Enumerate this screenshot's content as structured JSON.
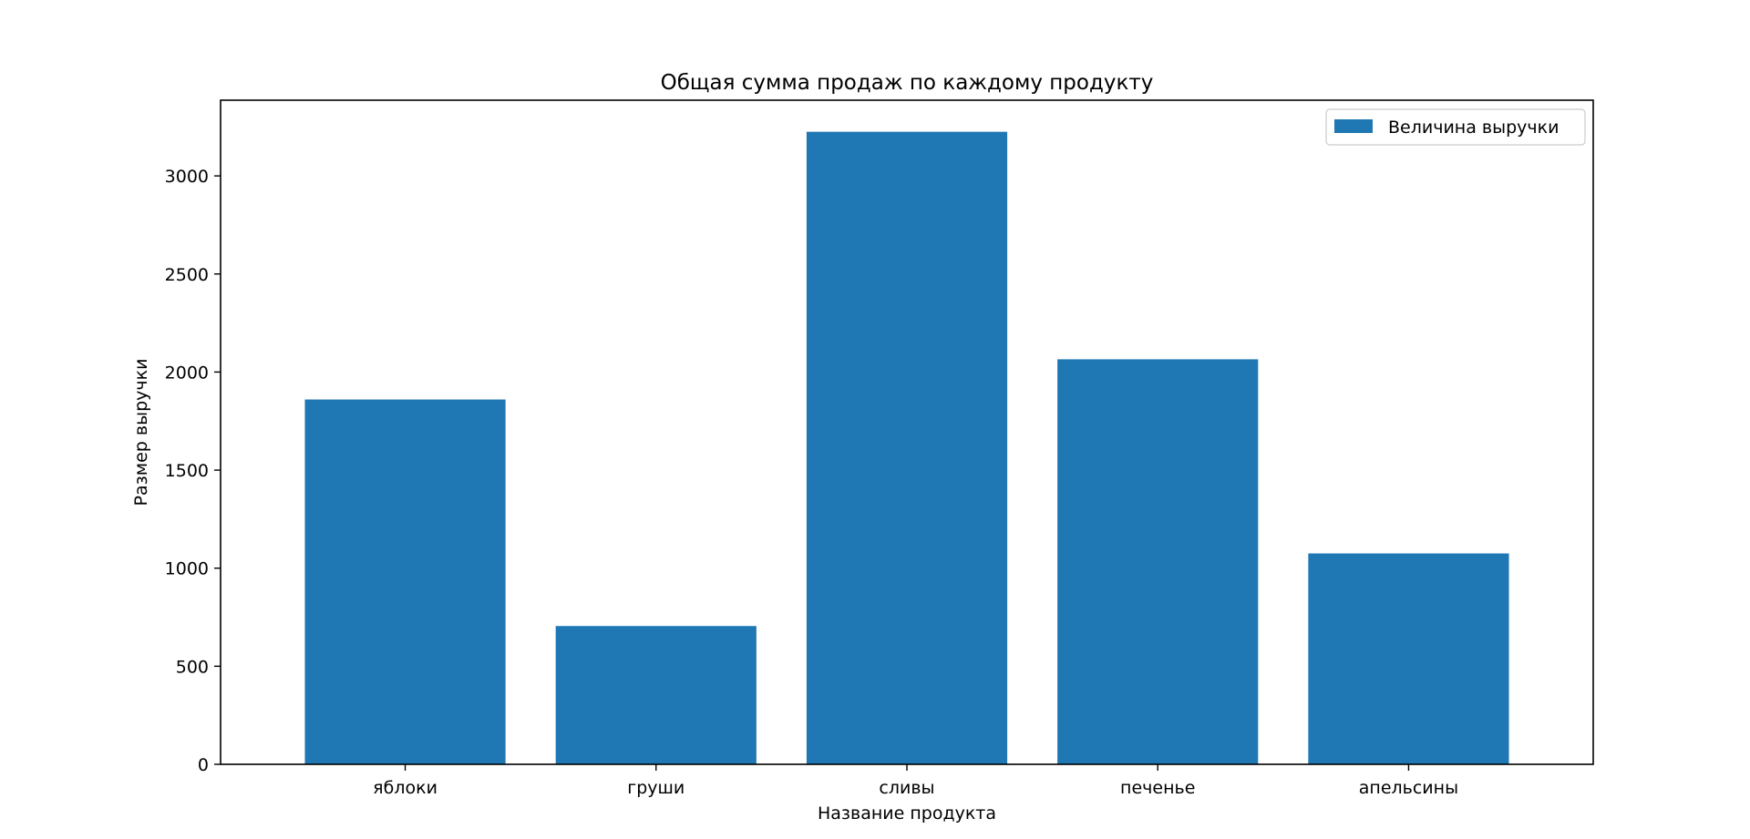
{
  "chart_data": {
    "type": "bar",
    "title": "Общая сумма продаж по каждому продукту",
    "xlabel": "Название продукта",
    "ylabel": "Размер выручки",
    "categories": [
      "яблоки",
      "груши",
      "сливы",
      "печенье",
      "апельсины"
    ],
    "series": [
      {
        "name": "Величина выручки",
        "values": [
          1860,
          705,
          3225,
          2065,
          1075
        ],
        "color": "#1f77b4"
      }
    ],
    "ylim": [
      0,
      3386
    ],
    "yticks": [
      0,
      500,
      1000,
      1500,
      2000,
      2500,
      3000
    ],
    "grid": false,
    "legend_position": "top-right"
  }
}
